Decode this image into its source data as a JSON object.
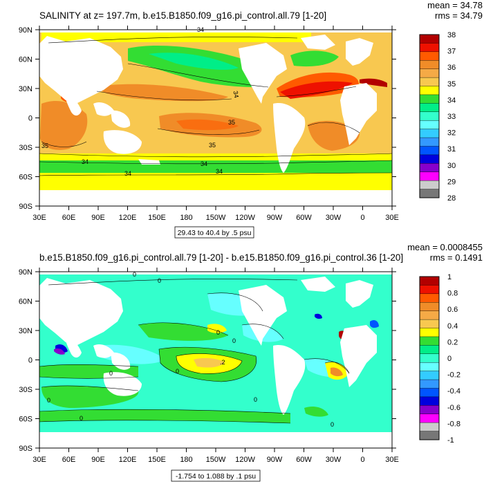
{
  "panels": [
    {
      "id": "top",
      "title": "SALINITY at z= 197.7m, b.e15.B1850.f09_g16.pi_control.all.79 [1-20]",
      "stat_mean": "mean = 34.78",
      "stat_rms": "rms = 34.79",
      "range_note": "29.43 to 40.4 by .5 psu",
      "lat_labels": [
        "90N",
        "60N",
        "30N",
        "0",
        "30S",
        "60S",
        "90S"
      ],
      "lon_labels": [
        "30E",
        "60E",
        "90E",
        "120E",
        "150E",
        "180",
        "150W",
        "120W",
        "90W",
        "60W",
        "30W",
        "0",
        "30E"
      ],
      "colorbar_labels": [
        "38",
        "37",
        "36",
        "35",
        "34",
        "33",
        "32",
        "31",
        "30",
        "29",
        "28"
      ],
      "colorbar_colors": [
        "#b20000",
        "#ee1100",
        "#ff5a00",
        "#f08c28",
        "#f5aa46",
        "#f8c850",
        "#ffff00",
        "#33dd33",
        "#00ee88",
        "#33ffcc",
        "#66ffff",
        "#33ccff",
        "#3399ff",
        "#0055ff",
        "#0000dd",
        "#8800cc",
        "#ff00ff",
        "#cccccc",
        "#777777"
      ],
      "contour_labels": [
        "34",
        "34",
        "35",
        "35",
        "35",
        "34",
        "34",
        "34",
        "34"
      ]
    },
    {
      "id": "bottom",
      "title": "b.e15.B1850.f09_g16.pi_control.all.79 [1-20] - b.e15.B1850.f09_g16.pi_control.36 [1-20]",
      "stat_mean": "mean = 0.0008455",
      "stat_rms": "rms = 0.1491",
      "range_note": "-1.754 to 1.088 by .1 psu",
      "lat_labels": [
        "90N",
        "60N",
        "30N",
        "0",
        "30S",
        "60S",
        "90S"
      ],
      "lon_labels": [
        "30E",
        "60E",
        "90E",
        "120E",
        "150E",
        "180",
        "150W",
        "120W",
        "90W",
        "60W",
        "30W",
        "0",
        "30E"
      ],
      "colorbar_labels": [
        "1",
        "0.8",
        "0.6",
        "0.4",
        "0.2",
        "0",
        "-0.2",
        "-0.4",
        "-0.6",
        "-0.8",
        "-1"
      ],
      "colorbar_colors": [
        "#b20000",
        "#ee1100",
        "#ff5a00",
        "#f08c28",
        "#f5aa46",
        "#f8c850",
        "#ffff00",
        "#33dd33",
        "#00ee88",
        "#33ffcc",
        "#66ffff",
        "#33ccff",
        "#3399ff",
        "#0055ff",
        "#0000dd",
        "#8800cc",
        "#ff00ff",
        "#cccccc",
        "#777777"
      ],
      "contour_labels": [
        "0",
        "0",
        "0",
        "0",
        "0",
        "0",
        ".2",
        "0",
        "0",
        "0",
        "0"
      ]
    }
  ]
}
